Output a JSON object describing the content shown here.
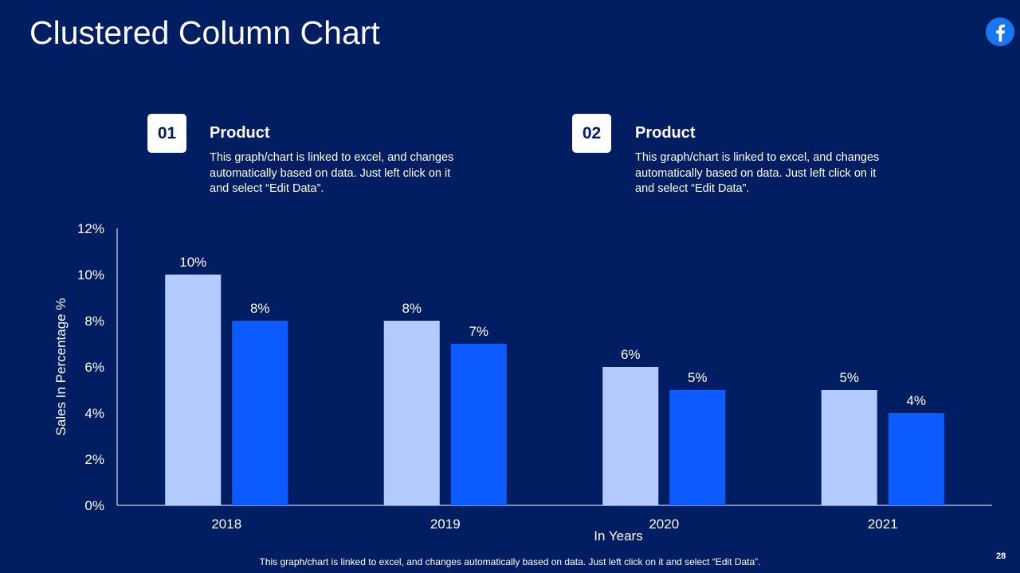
{
  "title": "Clustered Column Chart",
  "brand_icon": "facebook-icon",
  "colors": {
    "background": "#021e63",
    "series1": "#b3cbff",
    "series2": "#0c5bff",
    "text": "#ffffff"
  },
  "cards": [
    {
      "number": "01",
      "title": "Product",
      "description": "This graph/chart is linked to excel, and changes automatically based on data. Just left click on it and select “Edit Data”."
    },
    {
      "number": "02",
      "title": "Product",
      "description": "This graph/chart is linked to excel, and changes automatically based on data. Just left click on it and select “Edit Data”."
    }
  ],
  "chart_data": {
    "type": "bar",
    "categories": [
      "2018",
      "2019",
      "2020",
      "2021"
    ],
    "series": [
      {
        "name": "Product 01",
        "values": [
          10,
          8,
          6,
          5
        ],
        "labels": [
          "10%",
          "8%",
          "6%",
          "5%"
        ]
      },
      {
        "name": "Product 02",
        "values": [
          8,
          7,
          5,
          4
        ],
        "labels": [
          "8%",
          "7%",
          "5%",
          "4%"
        ]
      }
    ],
    "xlabel": "In Years",
    "ylabel": "Sales In Percentage %",
    "ylim": [
      0,
      12
    ],
    "yticks": [
      "0%",
      "2%",
      "4%",
      "6%",
      "8%",
      "10%",
      "12%"
    ],
    "grid": false,
    "legend": "none"
  },
  "footer": "This graph/chart is linked to excel, and changes automatically based on data. Just left click on it and select “Edit Data”.",
  "page_number": "28"
}
